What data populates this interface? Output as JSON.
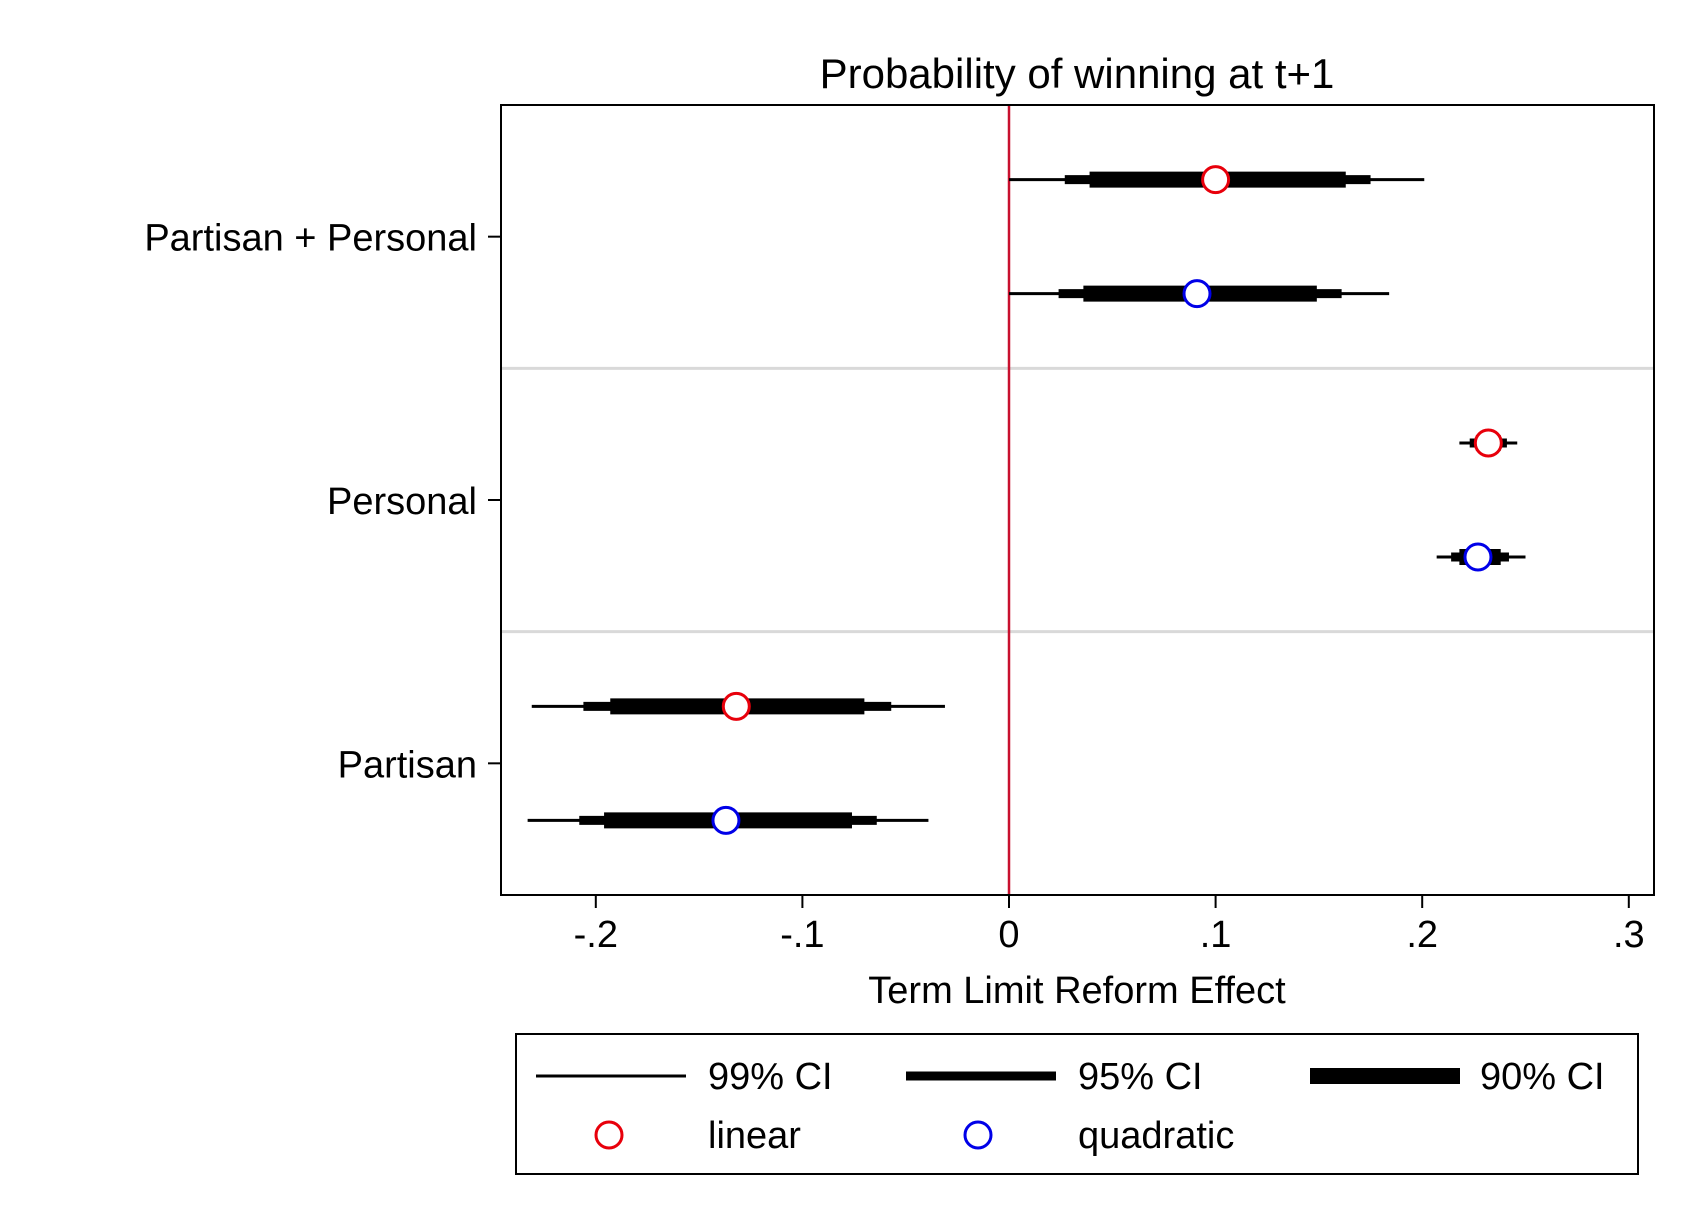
{
  "chart_data": {
    "type": "coefficient-plot",
    "title": "Probability of winning at t+1",
    "xlabel": "Term Limit Reform Effect",
    "ylabel": "",
    "xlim": [
      -0.25,
      0.31
    ],
    "x_ticks": [
      {
        "value": -0.2,
        "label": "-.2"
      },
      {
        "value": -0.1,
        "label": "-.1"
      },
      {
        "value": 0,
        "label": "0"
      },
      {
        "value": 0.1,
        "label": ".1"
      },
      {
        "value": 0.2,
        "label": ".2"
      },
      {
        "value": 0.3,
        "label": ".3"
      }
    ],
    "reference_line": {
      "x": 0,
      "color": "#c8102e"
    },
    "groups": [
      "Partisan + Personal",
      "Personal",
      "Partisan"
    ],
    "group_separators": true,
    "series": [
      {
        "name": "linear",
        "color": "#e8000b"
      },
      {
        "name": "quadratic",
        "color": "#0000e8"
      }
    ],
    "estimates": [
      {
        "group": "Partisan + Personal",
        "series": "linear",
        "point": 0.1,
        "ci90": [
          0.039,
          0.163
        ],
        "ci95": [
          0.027,
          0.175
        ],
        "ci99": [
          0.0,
          0.201
        ]
      },
      {
        "group": "Partisan + Personal",
        "series": "quadratic",
        "point": 0.091,
        "ci90": [
          0.036,
          0.149
        ],
        "ci95": [
          0.024,
          0.161
        ],
        "ci99": [
          0.0,
          0.184
        ]
      },
      {
        "group": "Personal",
        "series": "linear",
        "point": 0.232,
        "ci90": [
          0.226,
          0.238
        ],
        "ci95": [
          0.223,
          0.241
        ],
        "ci99": [
          0.218,
          0.246
        ]
      },
      {
        "group": "Personal",
        "series": "quadratic",
        "point": 0.227,
        "ci90": [
          0.218,
          0.238
        ],
        "ci95": [
          0.214,
          0.242
        ],
        "ci99": [
          0.207,
          0.25
        ]
      },
      {
        "group": "Partisan",
        "series": "linear",
        "point": -0.132,
        "ci90": [
          -0.193,
          -0.07
        ],
        "ci95": [
          -0.206,
          -0.057
        ],
        "ci99": [
          -0.231,
          -0.031
        ]
      },
      {
        "group": "Partisan",
        "series": "quadratic",
        "point": -0.137,
        "ci90": [
          -0.196,
          -0.076
        ],
        "ci95": [
          -0.208,
          -0.064
        ],
        "ci99": [
          -0.233,
          -0.039
        ]
      }
    ],
    "grid": false,
    "legend": {
      "position": "bottom",
      "ci_items": [
        {
          "label": "99% CI",
          "level": "ci99"
        },
        {
          "label": "95% CI",
          "level": "ci95"
        },
        {
          "label": "90% CI",
          "level": "ci90"
        }
      ],
      "marker_items": [
        {
          "label": "linear",
          "series": "linear"
        },
        {
          "label": "quadratic",
          "series": "quadratic"
        }
      ]
    }
  }
}
